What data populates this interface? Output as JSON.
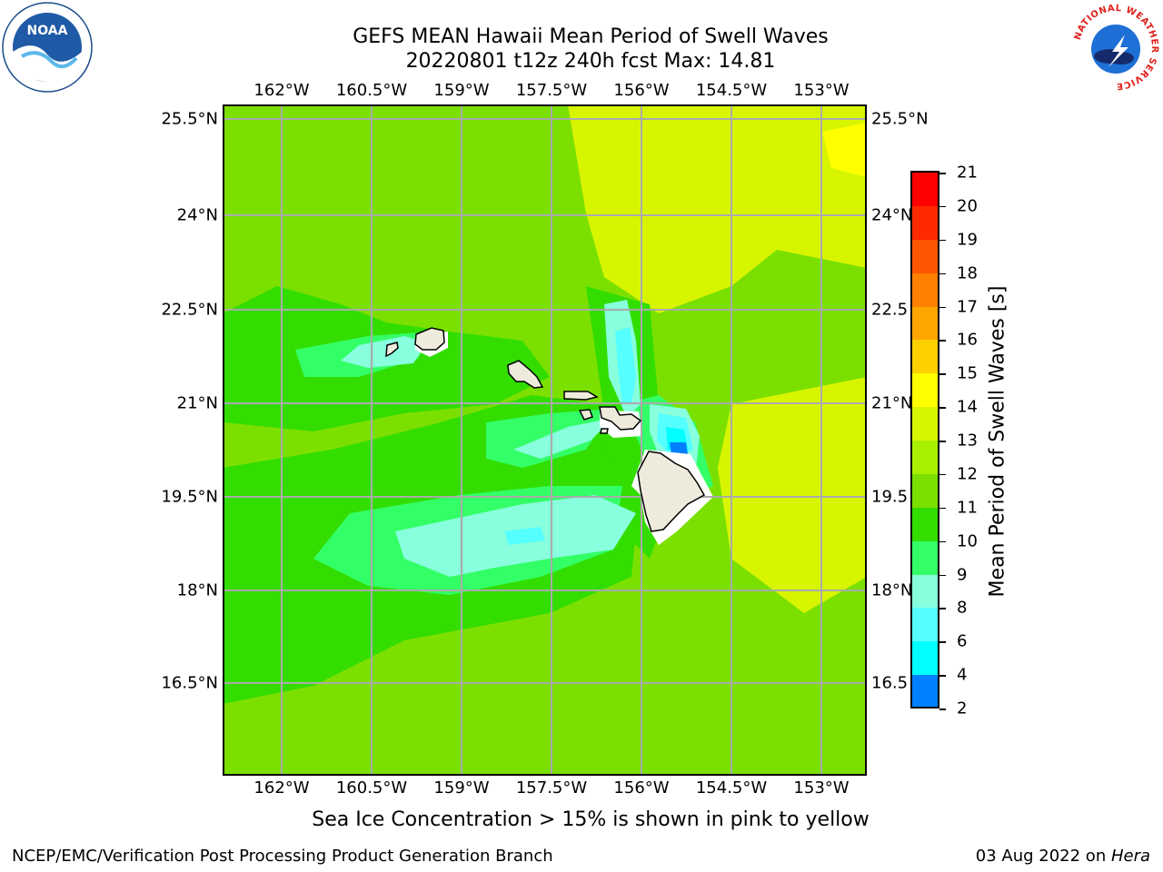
{
  "title": {
    "line1": "GEFS MEAN Hawaii Mean Period of Swell Waves",
    "line2": "20220801 t12z 240h fcst   Max: 14.81"
  },
  "axes": {
    "lon_labels": [
      "162°W",
      "160.5°W",
      "159°W",
      "157.5°W",
      "156°W",
      "154.5°W",
      "153°W"
    ],
    "lat_labels": [
      "25.5°N",
      "24°N",
      "22.5°N",
      "21°N",
      "19.5°N",
      "18°N",
      "16.5°N"
    ],
    "lat_labels_right": [
      "25.5°N",
      "24°N",
      "22.5",
      "21°N",
      "19.5",
      "18°N",
      "16.5"
    ]
  },
  "colorbar": {
    "label": "Mean Period of Swell Waves [s]",
    "ticks": [
      "21",
      "20",
      "19",
      "18",
      "17",
      "16",
      "15",
      "14",
      "13",
      "12",
      "11",
      "10",
      "9",
      "8",
      "6",
      "4",
      "2"
    ],
    "colors": [
      "#ff0000",
      "#ff2a00",
      "#ff5500",
      "#ff7f00",
      "#ffa500",
      "#ffd000",
      "#ffff00",
      "#d8f500",
      "#a8f000",
      "#7be000",
      "#33dd00",
      "#33ff66",
      "#88ffdd",
      "#55ffff",
      "#00ffff",
      "#0080ff",
      "#0000ff"
    ]
  },
  "map_colors": {
    "c8": "#00ffff",
    "c9": "#55ffff",
    "c10": "#88ffdd",
    "c11": "#33ff66",
    "c12": "#33dd00",
    "c13": "#7be000",
    "c14": "#a8f000",
    "c15": "#d8f500",
    "c16": "#ffff00",
    "c6": "#0080ff",
    "land": "#efebdc",
    "grid": "#aaaaaa"
  },
  "note": "Sea Ice Concentration > 15% is shown in pink to yellow",
  "footer": {
    "credit": "NCEP/EMC/Verification Post Processing Product Generation Branch",
    "date_prefix": "03 Aug 2022 on ",
    "machine": "Hera"
  },
  "logos": {
    "noaa": "NOAA",
    "nws_ring": "NATIONAL WEATHER SERVICE"
  }
}
